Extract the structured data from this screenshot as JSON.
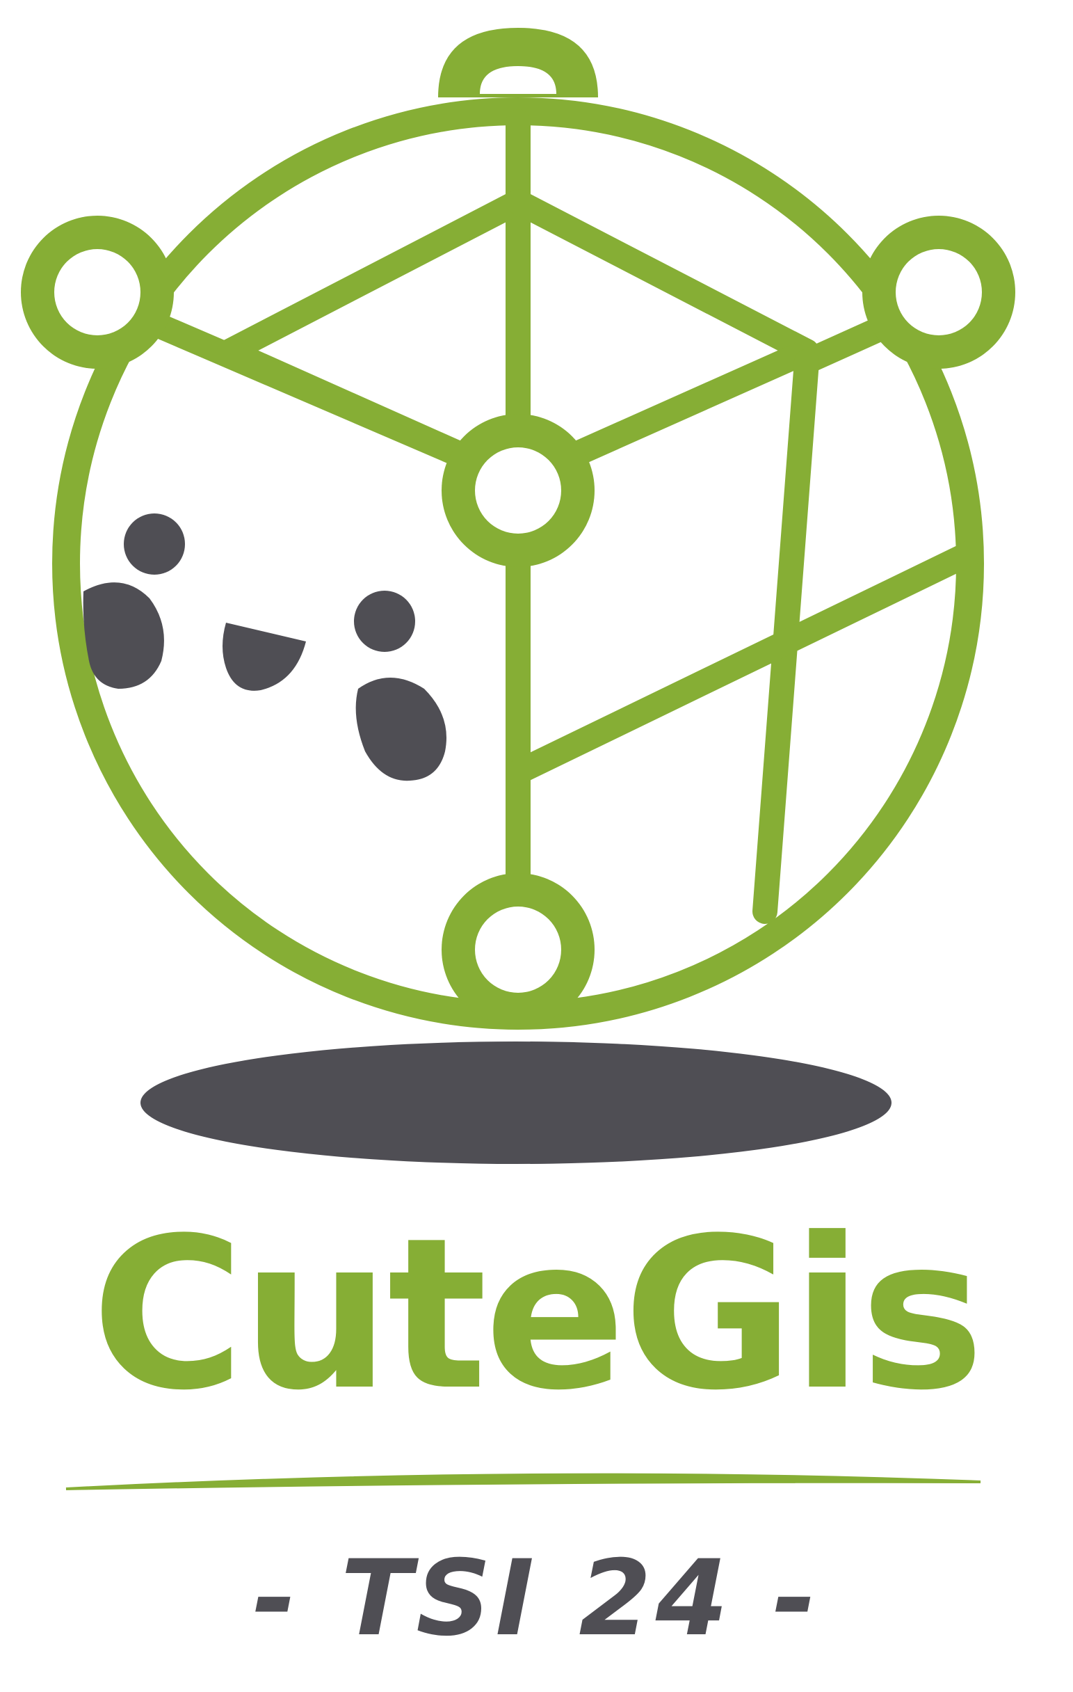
{
  "brand": {
    "name": "CuteGis",
    "tagline": "- TSI 24 -"
  },
  "colors": {
    "green": "#86AE35",
    "charcoal": "#4F4E54",
    "background": "#FFFFFF"
  },
  "icons": {
    "emblem": "cute-globe-mascot-icon",
    "shadow": "floating-shadow-ellipse"
  }
}
